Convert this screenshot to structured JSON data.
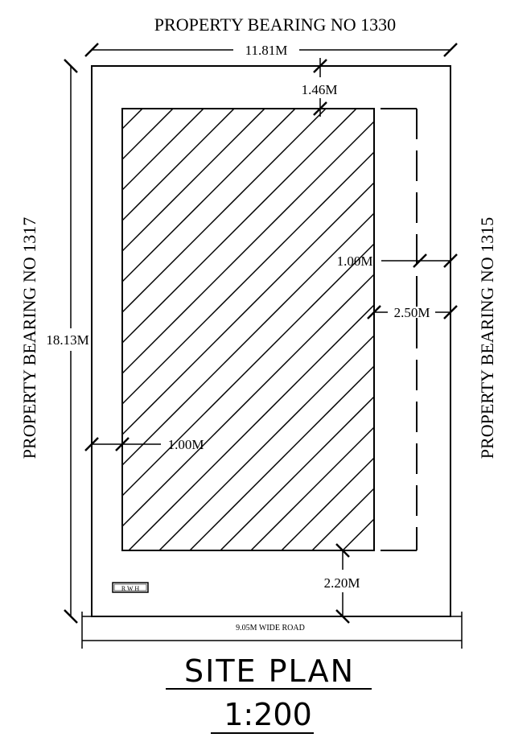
{
  "neighbors": {
    "top": "PROPERTY BEARING NO 1330",
    "left": "PROPERTY BEARING NO 1317",
    "right": "PROPERTY BEARING NO 1315"
  },
  "dimensions": {
    "width": "11.81M",
    "depth": "18.13M",
    "front_setback": "1.46M",
    "left_setback": "1.00M",
    "right_setback": "1.00M",
    "right_gap": "2.50M",
    "rear_setback": "2.20M"
  },
  "road": {
    "label": "9.05M WIDE ROAD"
  },
  "rwh_label": "R W H",
  "title": "SITE PLAN",
  "scale": "1:200"
}
